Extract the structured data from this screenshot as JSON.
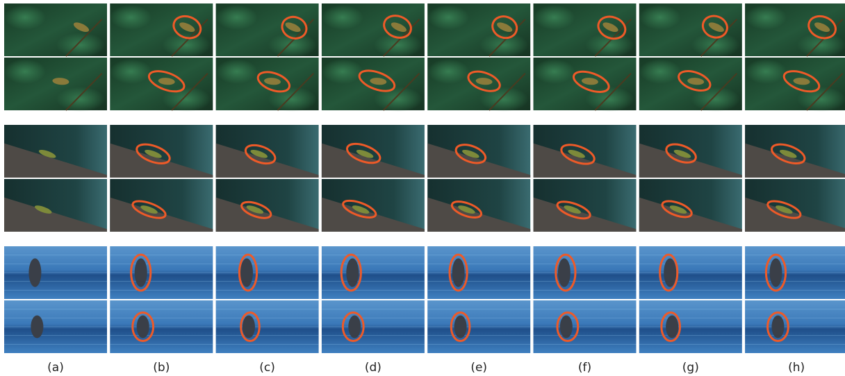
{
  "figure": {
    "columns": [
      "(a)",
      "(b)",
      "(c)",
      "(d)",
      "(e)",
      "(f)",
      "(g)",
      "(h)"
    ]
  }
}
